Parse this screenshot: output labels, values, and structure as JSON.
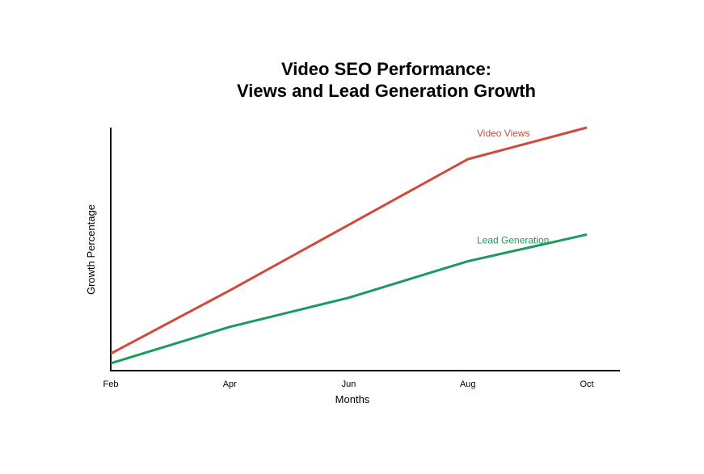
{
  "chart_data": {
    "type": "line",
    "title_lines": [
      "Video SEO Performance:",
      "Views and Lead Generation Growth"
    ],
    "xlabel": "Months",
    "ylabel": "Growth Percentage",
    "categories": [
      "Feb",
      "Apr",
      "Jun",
      "Aug",
      "Oct"
    ],
    "x": [
      0,
      1,
      2,
      3,
      4
    ],
    "ylim": [
      0,
      100
    ],
    "grid": false,
    "legend": "inline",
    "series": [
      {
        "name": "Video Views",
        "color": "#d04a3c",
        "values": [
          7,
          33,
          60,
          87,
          100
        ]
      },
      {
        "name": "Lead Generation",
        "color": "#1b9a5f",
        "values": [
          3,
          18,
          30,
          45,
          56
        ]
      }
    ]
  }
}
